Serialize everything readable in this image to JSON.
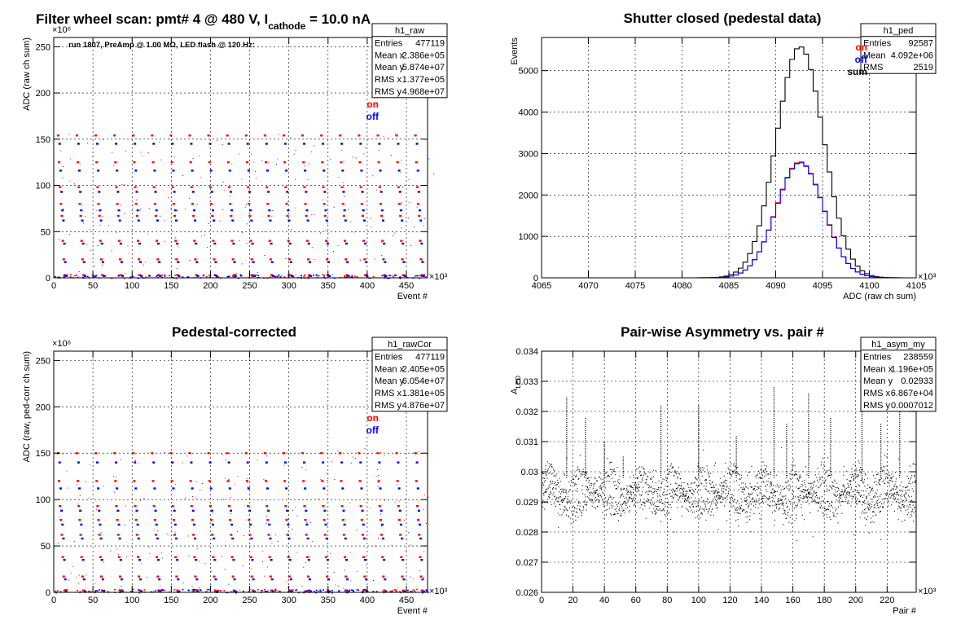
{
  "colors": {
    "on": "#ff0000",
    "off": "#0000ff",
    "sum": "#000000",
    "grid": "#000000"
  },
  "chart_data": [
    {
      "id": "p1",
      "type": "scatter",
      "title_main": "Filter wheel scan: pmt#   4 @   480 V, I",
      "title_sub": "cathode",
      "title_tail": "   = 10.0 nA",
      "note": "run 1807, PreAmp @ 1.00 MΩ, LED flash @  120 Hz:",
      "xlabel": "Event #",
      "ylabel": "ADC (raw ch sum)",
      "x_exp": "×10³",
      "y_exp": "×10⁶",
      "xlim": [
        0,
        477
      ],
      "ylim": [
        0,
        260
      ],
      "xticks": [
        0,
        50,
        100,
        150,
        200,
        250,
        300,
        350,
        400,
        450
      ],
      "yticks": [
        0,
        50,
        100,
        150,
        200,
        250
      ],
      "legend": [
        {
          "label": "on",
          "color": "#ff0000"
        },
        {
          "label": "off",
          "color": "#0000ff"
        }
      ],
      "stats": {
        "name": "h1_raw",
        "rows": [
          [
            "Entries",
            "477119"
          ],
          [
            "Mean x",
            "2.386e+05"
          ],
          [
            "Mean y",
            "5.874e+07"
          ],
          [
            "RMS x",
            "1.377e+05"
          ],
          [
            "RMS y",
            "4.968e+07"
          ]
        ]
      },
      "series": [
        {
          "name": "on",
          "color": "#ff0000",
          "levels": [
            154,
            125,
            98,
            80,
            67,
            40,
            20,
            3
          ],
          "note_x": "clustered at filter-wheel steps, period ≈ 24"
        },
        {
          "name": "off",
          "color": "#0000ff",
          "levels": [
            145,
            116,
            93,
            73,
            62,
            37,
            17,
            2
          ]
        }
      ]
    },
    {
      "id": "p2",
      "type": "histogram",
      "title": "Shutter closed (pedestal data)",
      "xlabel": "ADC (raw ch sum)",
      "ylabel": "Events",
      "x_exp": "×10³",
      "xlim": [
        4065,
        4105
      ],
      "ylim": [
        0,
        5800
      ],
      "xticks": [
        4065,
        4070,
        4075,
        4080,
        4085,
        4090,
        4095,
        4100,
        4105
      ],
      "yticks": [
        0,
        1000,
        2000,
        3000,
        4000,
        5000
      ],
      "legend": [
        {
          "label": "on",
          "color": "#ff0000"
        },
        {
          "label": "off",
          "color": "#0000ff"
        },
        {
          "label": "sum",
          "color": "#000000"
        }
      ],
      "stats": {
        "name": "h1_ped",
        "rows": [
          [
            "Entries",
            "92587"
          ],
          [
            "Mean",
            "4.092e+06"
          ],
          [
            "RMS",
            "2519"
          ]
        ]
      },
      "bin_width": 0.5,
      "peak_center": 4092.6,
      "sigma": 2.52,
      "series": [
        {
          "name": "sum",
          "color": "#000000",
          "peak": 5580
        },
        {
          "name": "on",
          "color": "#ff0000",
          "peak": 2800
        },
        {
          "name": "off",
          "color": "#0000ff",
          "peak": 2780
        }
      ]
    },
    {
      "id": "p3",
      "type": "scatter",
      "title": "Pedestal-corrected",
      "xlabel": "Event #",
      "ylabel": "ADC (raw, ped-corr ch sum)",
      "x_exp": "×10³",
      "y_exp": "×10⁶",
      "xlim": [
        0,
        477
      ],
      "ylim": [
        0,
        260
      ],
      "xticks": [
        0,
        50,
        100,
        150,
        200,
        250,
        300,
        350,
        400,
        450
      ],
      "yticks": [
        0,
        50,
        100,
        150,
        200,
        250
      ],
      "legend": [
        {
          "label": "on",
          "color": "#ff0000"
        },
        {
          "label": "off",
          "color": "#0000ff"
        }
      ],
      "stats": {
        "name": "h1_rawCor",
        "rows": [
          [
            "Entries",
            "477119"
          ],
          [
            "Mean x",
            "2.405e+05"
          ],
          [
            "Mean y",
            "6.054e+07"
          ],
          [
            "RMS x",
            "1.381e+05"
          ],
          [
            "RMS y",
            "4.876e+07"
          ]
        ]
      },
      "series": [
        {
          "name": "on",
          "color": "#ff0000",
          "levels": [
            150,
            120,
            93,
            78,
            62,
            38,
            17,
            2
          ]
        },
        {
          "name": "off",
          "color": "#0000ff",
          "levels": [
            140,
            112,
            88,
            73,
            58,
            35,
            14,
            1
          ]
        }
      ]
    },
    {
      "id": "p4",
      "type": "scatter",
      "title": "Pair-wise Asymmetry vs. pair #",
      "xlabel": "Pair #",
      "ylabel": "A",
      "ylabel_sub": "LED",
      "x_exp": "×10³",
      "xlim": [
        0,
        238.5
      ],
      "ylim": [
        0.026,
        0.034
      ],
      "xticks": [
        0,
        20,
        40,
        60,
        80,
        100,
        120,
        140,
        160,
        180,
        200,
        220
      ],
      "yticks": [
        0.026,
        0.027,
        0.028,
        0.029,
        0.03,
        0.031,
        0.032,
        0.033,
        0.034
      ],
      "stats": {
        "name": "h1_asym_my",
        "rows": [
          [
            "Entries",
            "238559"
          ],
          [
            "Mean x",
            "1.196e+05"
          ],
          [
            "Mean y",
            "0.02933"
          ],
          [
            "RMS x",
            "6.867e+04"
          ],
          [
            "RMS y",
            "0.0007012"
          ]
        ]
      },
      "series": [
        {
          "name": "asym",
          "color": "#000000",
          "band_upper": 0.0296,
          "band_lower": 0.029,
          "spikes": [
            [
              16,
              0.0325
            ],
            [
              28,
              0.0318
            ],
            [
              40,
              0.031
            ],
            [
              52,
              0.0305
            ],
            [
              76,
              0.0322
            ],
            [
              100,
              0.0322
            ],
            [
              124,
              0.0312
            ],
            [
              148,
              0.0328
            ],
            [
              156,
              0.0316
            ],
            [
              170,
              0.0326
            ],
            [
              184,
              0.0318
            ],
            [
              204,
              0.0322
            ],
            [
              216,
              0.0316
            ],
            [
              228,
              0.032
            ]
          ]
        }
      ]
    }
  ]
}
